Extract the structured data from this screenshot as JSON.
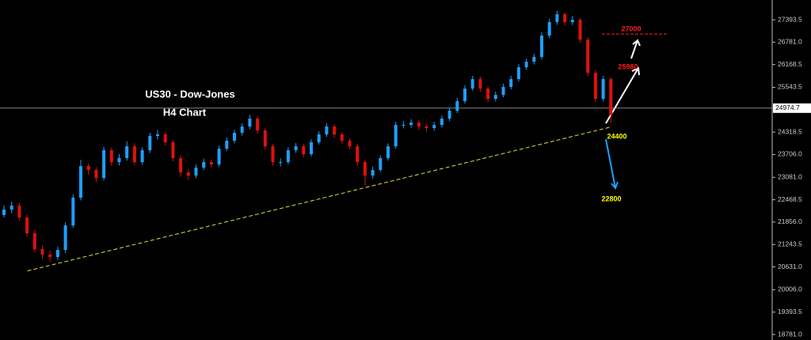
{
  "chart_data": {
    "type": "candlestick",
    "title": "US30 - Dow-Jones",
    "subtitle": "H4 Chart",
    "up_color": "#1e9fff",
    "down_color": "#e01010",
    "open": [
      22050,
      22200,
      22308,
      21983,
      21551,
      21118,
      20966,
      20901,
      21096,
      21767,
      22525,
      23390,
      23282,
      23066,
      23823,
      23498,
      23607,
      23931,
      23498,
      23823,
      24213,
      24256,
      24040,
      23607,
      23217,
      23131,
      23347,
      23498,
      23434,
      23866,
      24083,
      24299,
      24472,
      24688,
      24364,
      23931,
      23498,
      23498,
      23823,
      23931,
      23715,
      24040,
      24256,
      24472,
      24256,
      24083,
      23931,
      23498,
      23131,
      23282,
      23607,
      23931,
      24515,
      24515,
      24580,
      24472,
      24429,
      24515,
      24688,
      24905,
      25165,
      25511,
      25770,
      25511,
      25230,
      25338,
      25554,
      25770,
      26095,
      26247,
      26377,
      26961,
      27329,
      27545,
      27329,
      27393,
      26852,
      25943,
      25230,
      25770
    ],
    "high": [
      22320,
      22420,
      22390,
      22050,
      21640,
      21210,
      21080,
      21190,
      21850,
      22610,
      23560,
      23470,
      23360,
      23920,
      23900,
      23720,
      24060,
      24010,
      23900,
      24300,
      24380,
      24330,
      24100,
      23680,
      23300,
      23430,
      23590,
      23570,
      23950,
      24170,
      24380,
      24560,
      24790,
      24750,
      24430,
      24000,
      23600,
      23910,
      24020,
      24000,
      24120,
      24340,
      24560,
      24530,
      24320,
      24150,
      23990,
      23560,
      23370,
      23690,
      24010,
      24600,
      24620,
      24670,
      24640,
      24540,
      24600,
      24770,
      24990,
      25250,
      25600,
      25860,
      25840,
      25580,
      25430,
      25640,
      25860,
      26180,
      26330,
      26460,
      27050,
      27420,
      27640,
      27600,
      27500,
      27450,
      26920,
      26020,
      25860,
      25830
    ],
    "low": [
      21980,
      22100,
      21900,
      21460,
      21030,
      20850,
      20780,
      20820,
      21010,
      21700,
      22450,
      23150,
      22950,
      22990,
      23400,
      23410,
      23540,
      23420,
      23430,
      23750,
      24120,
      23950,
      23520,
      23100,
      23020,
      23060,
      23280,
      23350,
      23370,
      23800,
      24010,
      24220,
      24400,
      24280,
      23850,
      23400,
      23380,
      23440,
      23750,
      23630,
      23650,
      23980,
      24190,
      24170,
      24000,
      23850,
      23400,
      22860,
      23050,
      23220,
      23540,
      23870,
      24420,
      24440,
      24380,
      24330,
      24350,
      24450,
      24620,
      24840,
      25100,
      25450,
      25420,
      25140,
      25160,
      25270,
      25490,
      25700,
      26020,
      26170,
      26300,
      26890,
      27260,
      27240,
      27250,
      26760,
      25850,
      25140,
      25160,
      24580
    ],
    "close": [
      22200,
      22308,
      21983,
      21551,
      21118,
      20966,
      20901,
      21096,
      21767,
      22525,
      23390,
      23282,
      23066,
      23823,
      23498,
      23607,
      23931,
      23498,
      23823,
      24213,
      24256,
      24040,
      23607,
      23217,
      23131,
      23347,
      23498,
      23434,
      23866,
      24083,
      24299,
      24472,
      24688,
      24364,
      23931,
      23498,
      23498,
      23823,
      23931,
      23715,
      24040,
      24256,
      24472,
      24256,
      24083,
      23931,
      23498,
      23131,
      23282,
      23607,
      23931,
      24515,
      24515,
      24580,
      24472,
      24429,
      24515,
      24688,
      24905,
      25165,
      25511,
      25770,
      25511,
      25230,
      25338,
      25554,
      25770,
      26095,
      26247,
      26377,
      26961,
      27329,
      27545,
      27329,
      27393,
      26852,
      25943,
      25230,
      25770,
      24797
    ],
    "ylim": [
      18630,
      27934.5
    ],
    "yticks": [
      27393.5,
      {
        "value": 26781,
        "label": "26781.0"
      },
      26168.5,
      25543.5,
      24318.5,
      {
        "value": 23706,
        "label": "23706.0"
      },
      {
        "value": 23081,
        "label": "23081.0"
      },
      22468.5,
      {
        "value": 21856,
        "label": "21856.0"
      },
      21243.5,
      {
        "value": 20631,
        "label": "20631.0"
      },
      {
        "value": 20006,
        "label": "20006.0"
      },
      19393.5,
      {
        "value": 18781,
        "label": "18781.0"
      }
    ],
    "current_price": 24974.7,
    "trendline": {
      "x": [
        3,
        79
      ],
      "y": [
        20520,
        24460
      ],
      "color": "#e8d84a"
    },
    "levels": [
      {
        "value": 27000,
        "color": "#ff2020"
      },
      {
        "value": 25980,
        "color": "#ff2020"
      },
      {
        "value": 24400,
        "color": "#ffff00"
      },
      {
        "value": 22800,
        "color": "#ffff00"
      }
    ]
  }
}
